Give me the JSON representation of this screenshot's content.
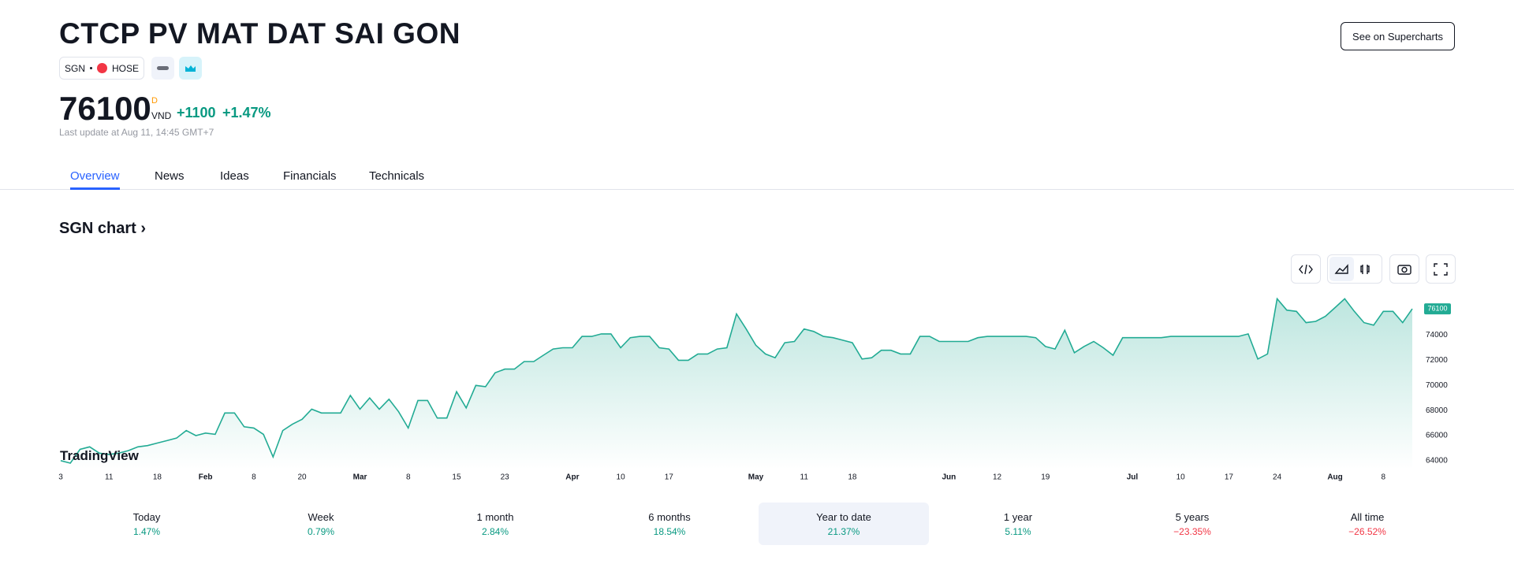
{
  "header": {
    "title": "CTCP PV MAT DAT SAI GON",
    "symbol": "SGN",
    "exchange": "HOSE",
    "price": "76100",
    "price_marker": "D",
    "currency": "VND",
    "change": "+1100",
    "change_percent": "+1.47%",
    "last_update": "Last update at Aug 11, 14:45 GMT+7",
    "button": "See on Supercharts"
  },
  "tabs": {
    "items": [
      "Overview",
      "News",
      "Ideas",
      "Financials",
      "Technicals"
    ],
    "active": 0
  },
  "section_title": "SGN chart",
  "logo": "TradingView",
  "chart_data": {
    "type": "area",
    "color": "#22ab94",
    "categories": [
      "3",
      null,
      null,
      null,
      null,
      "11",
      null,
      null,
      null,
      null,
      "18",
      null,
      null,
      null,
      null,
      "Feb",
      null,
      null,
      null,
      null,
      "8",
      null,
      null,
      null,
      null,
      "20",
      null,
      null,
      null,
      null,
      null,
      "Mar",
      null,
      null,
      null,
      null,
      "8",
      null,
      null,
      null,
      null,
      "15",
      null,
      null,
      null,
      null,
      "23",
      null,
      null,
      null,
      null,
      null,
      null,
      "Apr",
      null,
      null,
      null,
      null,
      "10",
      null,
      null,
      null,
      null,
      "17",
      null,
      null,
      null,
      null,
      null,
      null,
      null,
      null,
      "May",
      null,
      null,
      null,
      null,
      "11",
      null,
      null,
      null,
      null,
      "18",
      null,
      null,
      null,
      null,
      null,
      null,
      null,
      null,
      null,
      "Jun",
      null,
      null,
      null,
      null,
      "12",
      null,
      null,
      null,
      null,
      "19",
      null,
      null,
      null,
      null,
      null,
      null,
      null,
      null,
      "Jul",
      null,
      null,
      null,
      null,
      "10",
      null,
      null,
      null,
      null,
      "17",
      null,
      null,
      null,
      null,
      "24",
      null,
      null,
      null,
      null,
      null,
      "Aug",
      null,
      null,
      null,
      null,
      "8",
      null,
      null,
      null
    ],
    "series": [
      {
        "name": "SGN",
        "values": [
          64000,
          63800,
          64900,
          65100,
          64600,
          64500,
          64600,
          64800,
          65100,
          65200,
          65400,
          65600,
          65800,
          66400,
          66000,
          66200,
          66100,
          67800,
          67800,
          66700,
          66600,
          66100,
          64300,
          66400,
          66900,
          67300,
          68100,
          67800,
          67800,
          67800,
          69200,
          68100,
          69000,
          68100,
          68900,
          67900,
          66600,
          68800,
          68800,
          67400,
          67400,
          69500,
          68200,
          70000,
          69900,
          71000,
          71300,
          71300,
          71900,
          71900,
          72400,
          72900,
          73000,
          73000,
          73900,
          73900,
          74100,
          74100,
          73000,
          73800,
          73900,
          73900,
          73000,
          72900,
          72000,
          72000,
          72500,
          72500,
          72900,
          73000,
          75700,
          74500,
          73200,
          72500,
          72200,
          73400,
          73500,
          74500,
          74300,
          73900,
          73800,
          73600,
          73400,
          72100,
          72200,
          72800,
          72800,
          72500,
          72500,
          73900,
          73900,
          73500,
          73500,
          73500,
          73500,
          73800,
          73900,
          73900,
          73900,
          73900,
          73900,
          73800,
          73100,
          72900,
          74400,
          72600,
          73100,
          73500,
          73000,
          72400,
          73800,
          73800,
          73800,
          73800,
          73800,
          73900,
          73900,
          73900,
          73900,
          73900,
          73900,
          73900,
          73900,
          74100,
          72100,
          72500,
          76900,
          76000,
          75900,
          75000,
          75100,
          75500,
          76200,
          76900,
          75900,
          75000,
          74800,
          75900,
          75900,
          75000,
          76100
        ]
      }
    ],
    "ylim": [
      63300,
      77800
    ],
    "yticks": [
      64000,
      66000,
      68000,
      70000,
      72000,
      74000
    ]
  },
  "performance": {
    "active": 4,
    "items": [
      {
        "label": "Today",
        "value": "1.47%"
      },
      {
        "label": "Week",
        "value": "0.79%"
      },
      {
        "label": "1 month",
        "value": "2.84%"
      },
      {
        "label": "6 months",
        "value": "18.54%"
      },
      {
        "label": "Year to date",
        "value": "21.37%"
      },
      {
        "label": "1 year",
        "value": "5.11%"
      },
      {
        "label": "5 years",
        "value": "−23.35%"
      },
      {
        "label": "All time",
        "value": "−26.52%"
      }
    ]
  }
}
